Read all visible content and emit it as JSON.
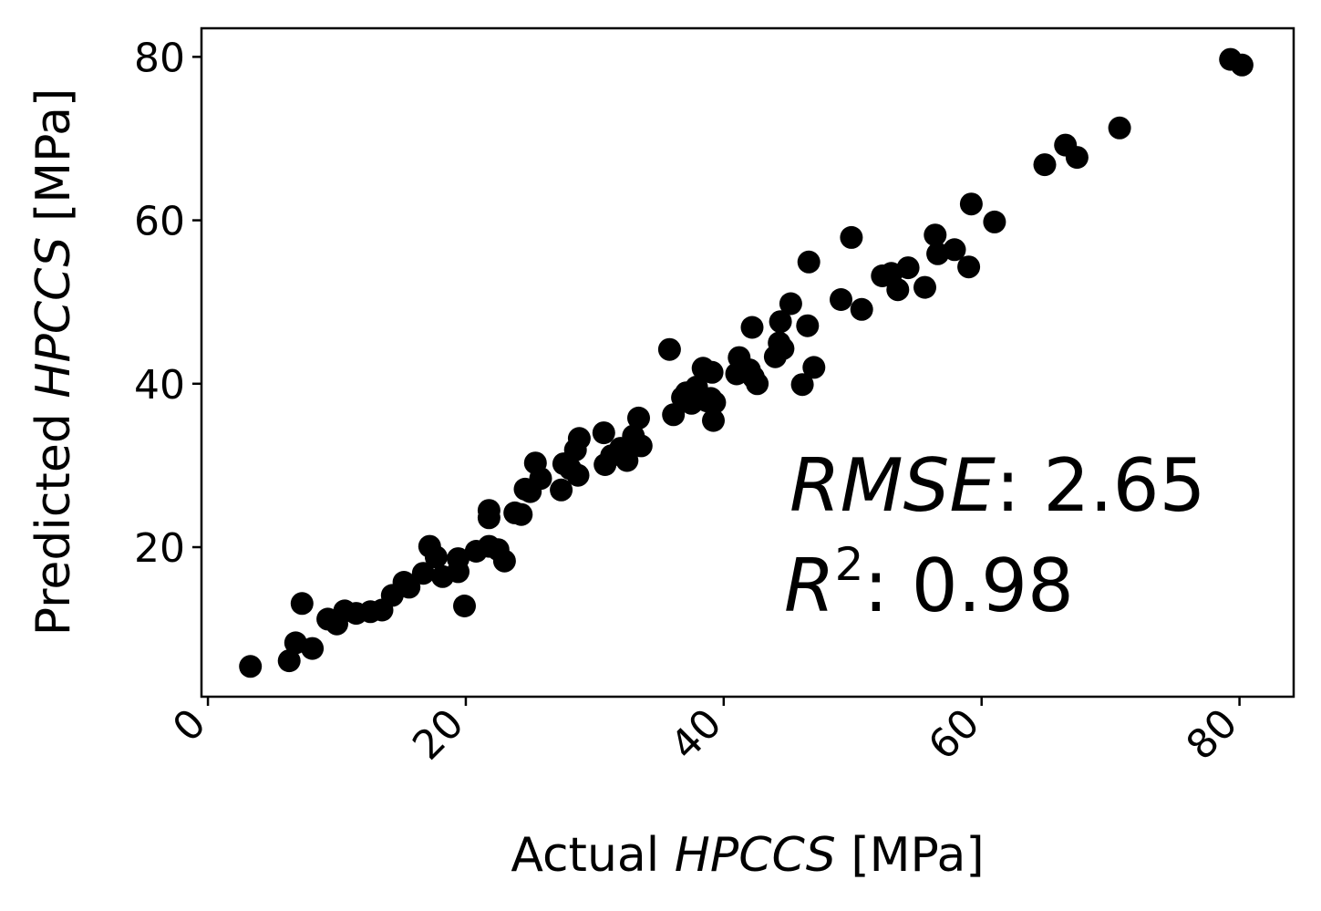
{
  "chart_data": {
    "type": "scatter",
    "title": "",
    "xlabel": {
      "prefix": "Actual ",
      "italic": "HPCCS",
      "suffix": " [MPa]"
    },
    "ylabel": {
      "prefix": "Predicted ",
      "italic": "HPCCS",
      "suffix": " [MPa]"
    },
    "xlim": [
      -0.5,
      84.2
    ],
    "ylim": [
      1.7,
      83.5
    ],
    "xticks": [
      0,
      20,
      40,
      60,
      80
    ],
    "yticks": [
      20,
      40,
      60,
      80
    ],
    "xtick_labels": [
      "0",
      "20",
      "40",
      "60",
      "80"
    ],
    "ytick_labels": [
      "20",
      "40",
      "60",
      "80"
    ],
    "grid": false,
    "marker_color": "#000000",
    "annotations": {
      "rmse": {
        "italic": "RMSE",
        "text": ": 2.65"
      },
      "r2": {
        "italic": "R",
        "sup": "2",
        "text": ": 0.98"
      }
    },
    "points": [
      [
        3.3,
        5.4
      ],
      [
        6.3,
        6.1
      ],
      [
        6.8,
        8.3
      ],
      [
        7.3,
        13.1
      ],
      [
        8.1,
        7.6
      ],
      [
        9.3,
        11.2
      ],
      [
        10.0,
        10.6
      ],
      [
        10.6,
        12.2
      ],
      [
        11.5,
        11.9
      ],
      [
        12.6,
        12.1
      ],
      [
        13.5,
        12.3
      ],
      [
        14.3,
        14.1
      ],
      [
        15.2,
        15.7
      ],
      [
        15.6,
        15.1
      ],
      [
        16.7,
        16.8
      ],
      [
        17.2,
        20.1
      ],
      [
        17.7,
        18.8
      ],
      [
        18.2,
        16.4
      ],
      [
        19.4,
        18.6
      ],
      [
        19.4,
        17.0
      ],
      [
        19.9,
        12.8
      ],
      [
        20.8,
        19.5
      ],
      [
        21.8,
        24.5
      ],
      [
        21.8,
        20.1
      ],
      [
        21.8,
        23.6
      ],
      [
        22.5,
        19.7
      ],
      [
        23.0,
        18.3
      ],
      [
        23.8,
        24.2
      ],
      [
        24.3,
        24.0
      ],
      [
        24.6,
        27.1
      ],
      [
        25.0,
        26.8
      ],
      [
        25.4,
        30.3
      ],
      [
        25.8,
        28.4
      ],
      [
        27.4,
        27.0
      ],
      [
        27.6,
        30.2
      ],
      [
        28.1,
        29.6
      ],
      [
        28.5,
        31.9
      ],
      [
        28.7,
        28.8
      ],
      [
        28.8,
        33.3
      ],
      [
        30.7,
        34.0
      ],
      [
        30.8,
        30.1
      ],
      [
        31.3,
        31.2
      ],
      [
        32.0,
        32.1
      ],
      [
        32.5,
        30.6
      ],
      [
        33.0,
        33.6
      ],
      [
        33.4,
        35.8
      ],
      [
        33.6,
        32.4
      ],
      [
        35.8,
        44.2
      ],
      [
        36.1,
        36.2
      ],
      [
        36.8,
        38.3
      ],
      [
        37.1,
        38.9
      ],
      [
        37.5,
        37.6
      ],
      [
        37.9,
        39.6
      ],
      [
        38.0,
        38.3
      ],
      [
        38.4,
        41.9
      ],
      [
        38.7,
        37.9
      ],
      [
        39.0,
        38.2
      ],
      [
        39.1,
        41.4
      ],
      [
        39.2,
        35.5
      ],
      [
        39.3,
        37.7
      ],
      [
        41.0,
        41.2
      ],
      [
        41.2,
        43.2
      ],
      [
        42.0,
        41.7
      ],
      [
        42.2,
        46.9
      ],
      [
        42.3,
        40.8
      ],
      [
        42.6,
        40.0
      ],
      [
        44.0,
        43.3
      ],
      [
        44.3,
        45.0
      ],
      [
        44.4,
        47.6
      ],
      [
        44.6,
        44.3
      ],
      [
        45.2,
        49.8
      ],
      [
        46.1,
        39.9
      ],
      [
        46.5,
        47.1
      ],
      [
        46.6,
        54.9
      ],
      [
        47.0,
        42.0
      ],
      [
        49.1,
        50.3
      ],
      [
        49.9,
        57.9
      ],
      [
        50.7,
        49.1
      ],
      [
        52.3,
        53.2
      ],
      [
        53.0,
        53.5
      ],
      [
        53.5,
        51.5
      ],
      [
        54.3,
        54.2
      ],
      [
        55.6,
        51.8
      ],
      [
        56.4,
        58.2
      ],
      [
        56.6,
        55.9
      ],
      [
        57.9,
        56.4
      ],
      [
        59.0,
        54.3
      ],
      [
        59.2,
        62.0
      ],
      [
        61.0,
        59.8
      ],
      [
        64.9,
        66.8
      ],
      [
        66.5,
        69.2
      ],
      [
        67.4,
        67.7
      ],
      [
        70.7,
        71.3
      ],
      [
        79.3,
        79.7
      ],
      [
        80.2,
        79.0
      ]
    ]
  }
}
